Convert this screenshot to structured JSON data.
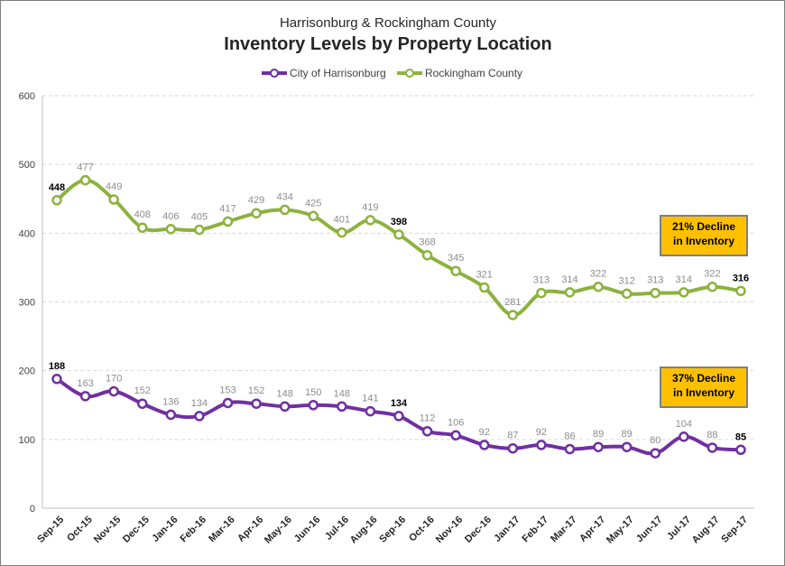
{
  "chart_data": {
    "type": "line",
    "subtitle": "Harrisonburg & Rockingham County",
    "title": "Inventory Levels by Property Location",
    "xlabel": "",
    "ylabel": "",
    "ylim": [
      0,
      600
    ],
    "yticks": [
      0,
      100,
      200,
      300,
      400,
      500,
      600
    ],
    "grid": true,
    "legend_position": "top",
    "categories": [
      "Sep-15",
      "Oct-15",
      "Nov-15",
      "Dec-15",
      "Jan-16",
      "Feb-16",
      "Mar-16",
      "Apr-16",
      "May-16",
      "Jun-16",
      "Jul-16",
      "Aug-16",
      "Sep-16",
      "Oct-16",
      "Nov-16",
      "Dec-16",
      "Jan-17",
      "Feb-17",
      "Mar-17",
      "Apr-17",
      "May-17",
      "Jun-17",
      "Jul-17",
      "Aug-17",
      "Sep-17"
    ],
    "series": [
      {
        "name": "City of Harrisonburg",
        "color": "#7030a0",
        "values": [
          188,
          163,
          170,
          152,
          136,
          134,
          153,
          152,
          148,
          150,
          148,
          141,
          134,
          112,
          106,
          92,
          87,
          92,
          86,
          89,
          89,
          80,
          104,
          88,
          85
        ],
        "bold_labels": [
          0,
          12,
          24
        ]
      },
      {
        "name": "Rockingham County",
        "color": "#8cb23e",
        "values": [
          448,
          477,
          449,
          408,
          406,
          405,
          417,
          429,
          434,
          425,
          401,
          419,
          398,
          368,
          345,
          321,
          281,
          313,
          314,
          322,
          312,
          313,
          314,
          322,
          316
        ],
        "bold_labels": [
          0,
          12,
          24
        ]
      }
    ],
    "annotations": [
      {
        "line1": "21% Decline",
        "line2": "in Inventory"
      },
      {
        "line1": "37% Decline",
        "line2": "in Inventory"
      }
    ]
  }
}
